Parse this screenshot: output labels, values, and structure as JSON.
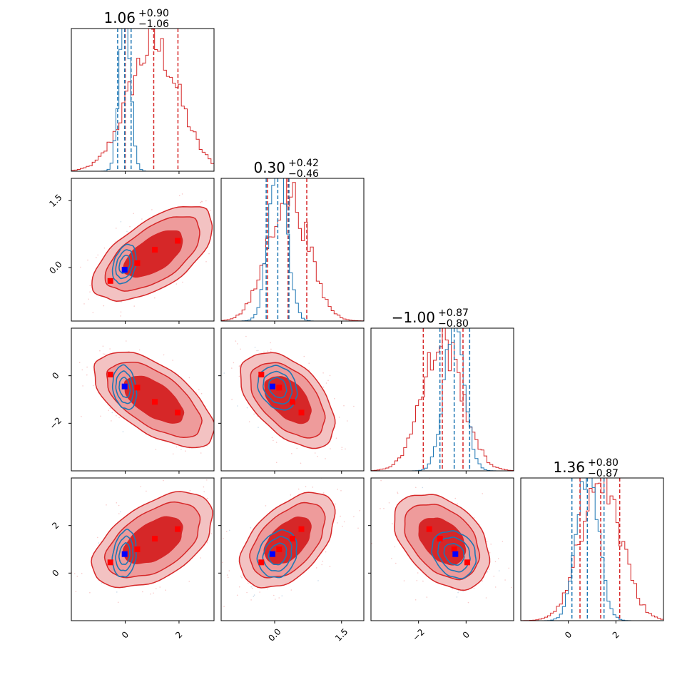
{
  "chart_data": {
    "type": "corner",
    "n_params": 4,
    "colors": {
      "red": "#d62728",
      "blue": "#1f77b4",
      "red_light": "#ee9b9b",
      "marker_red": "#ff0000",
      "marker_blue": "#0000ff"
    },
    "ranges": [
      [
        -2.0,
        3.3
      ],
      [
        -1.2,
        2.0
      ],
      [
        -4.0,
        2.0
      ],
      [
        -2.0,
        4.0
      ]
    ],
    "titles": [
      {
        "value": "1.06",
        "plus": "+0.90",
        "minus": "−1.06"
      },
      {
        "value": "0.30",
        "plus": "+0.42",
        "minus": "−0.46"
      },
      {
        "value": "−1.00",
        "plus": "+0.87",
        "minus": "−0.80"
      },
      {
        "value": "1.36",
        "plus": "+0.80",
        "minus": "−0.87"
      }
    ],
    "x_ticks": [
      {
        "values": [
          0,
          2
        ],
        "labels": [
          "0",
          "2"
        ]
      },
      {
        "values": [
          0.0,
          1.5
        ],
        "labels": [
          "0.0",
          "1.5"
        ]
      },
      {
        "values": [
          -2,
          0
        ],
        "labels": [
          "−2",
          "0"
        ]
      },
      {
        "values": [
          0,
          2
        ],
        "labels": [
          "0",
          "2"
        ]
      }
    ],
    "y_ticks": [
      null,
      {
        "values": [
          0.0,
          1.5
        ],
        "labels": [
          "0.0",
          "1.5"
        ]
      },
      {
        "values": [
          -2,
          0
        ],
        "labels": [
          "−2",
          "0"
        ]
      },
      {
        "values": [
          0,
          2
        ],
        "labels": [
          "0",
          "2"
        ]
      }
    ],
    "red_hist": {
      "quantiles": [
        [
          0.0,
          1.06,
          1.96
        ],
        [
          -0.16,
          0.3,
          0.72
        ],
        [
          -1.8,
          -1.0,
          -0.13
        ],
        [
          0.49,
          1.36,
          2.16
        ]
      ],
      "means": [
        1.06,
        0.3,
        -1.0,
        1.36
      ],
      "sigmas": [
        0.95,
        0.45,
        0.85,
        0.85
      ],
      "rho": [
        [
          1,
          0.6,
          -0.6,
          0.5
        ],
        [
          0.6,
          1,
          -0.5,
          0.5
        ],
        [
          -0.6,
          -0.5,
          1,
          -0.4
        ],
        [
          0.5,
          0.5,
          -0.4,
          1
        ]
      ]
    },
    "blue_hist": {
      "quantiles": [
        [
          -0.28,
          -0.02,
          0.22
        ],
        [
          -0.19,
          0.07,
          0.32
        ],
        [
          -1.1,
          -0.5,
          0.15
        ],
        [
          0.15,
          0.8,
          1.5
        ]
      ],
      "means": [
        -0.02,
        0.07,
        -0.5,
        0.8
      ],
      "sigmas": [
        0.2,
        0.2,
        0.42,
        0.45
      ],
      "rho": [
        [
          1,
          0.3,
          -0.2,
          0.2
        ],
        [
          0.3,
          1,
          -0.2,
          0.2
        ],
        [
          -0.2,
          -0.2,
          1,
          -0.2
        ],
        [
          0.2,
          0.2,
          -0.2,
          1
        ]
      ]
    },
    "red_markers": [
      [
        -0.55,
        -0.3,
        0.05,
        0.45
      ],
      [
        0.45,
        0.1,
        -0.5,
        1.0
      ],
      [
        1.1,
        0.4,
        -1.1,
        1.45
      ],
      [
        1.95,
        0.6,
        -1.55,
        1.85
      ]
    ],
    "blue_marker": [
      -0.02,
      -0.05,
      -0.45,
      0.8
    ]
  }
}
